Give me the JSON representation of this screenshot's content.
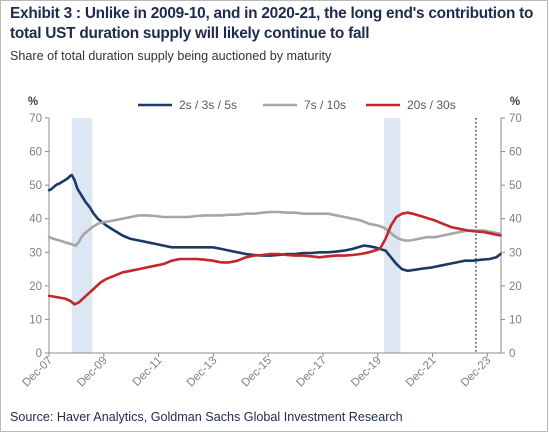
{
  "exhibit_title": "Exhibit 3 : Unlike in 2009-10, and in 2020-21, the long end's contribution to total UST duration supply will likely continue to fall",
  "subtitle": "Share of total duration supply being auctioned by maturity",
  "source": "Source: Haver Analytics, Goldman Sachs Global Investment Research",
  "chart_data": {
    "type": "line",
    "title": "",
    "xlabel": "",
    "ylabel_left": "%",
    "ylabel_right": "%",
    "ylim": [
      0,
      70
    ],
    "xlim": [
      2007.917,
      2024.417
    ],
    "y_ticks": [
      0,
      10,
      20,
      30,
      40,
      50,
      60,
      70
    ],
    "y_tick_labels": [
      "0",
      "10",
      "20",
      "30",
      "40",
      "50",
      "60",
      "70"
    ],
    "x_ticks": [
      2007.917,
      2009.917,
      2011.917,
      2013.917,
      2015.917,
      2017.917,
      2019.917,
      2021.917,
      2023.917
    ],
    "x_tick_labels": [
      "Dec-07",
      "Dec-09",
      "Dec-11",
      "Dec-13",
      "Dec-15",
      "Dec-17",
      "Dec-19",
      "Dec-21",
      "Dec-23"
    ],
    "grid": false,
    "legend_position": "top",
    "shaded_periods": [
      [
        2008.75,
        2009.5
      ],
      [
        2020.15,
        2020.75
      ]
    ],
    "vertical_marker_x": 2023.5,
    "series": [
      {
        "name": "2s / 3s / 5s",
        "color": "#1b3a64",
        "x": [
          2007.92,
          2008.0,
          2008.1,
          2008.2,
          2008.3,
          2008.4,
          2008.5,
          2008.6,
          2008.7,
          2008.75,
          2008.85,
          2008.95,
          2009.1,
          2009.25,
          2009.4,
          2009.55,
          2009.7,
          2009.85,
          2010.0,
          2010.3,
          2010.6,
          2010.9,
          2011.2,
          2011.5,
          2011.8,
          2012.1,
          2012.4,
          2012.7,
          2013.0,
          2013.3,
          2013.6,
          2013.9,
          2014.2,
          2014.5,
          2014.8,
          2015.1,
          2015.4,
          2015.7,
          2016.0,
          2016.3,
          2016.6,
          2016.9,
          2017.2,
          2017.5,
          2017.8,
          2018.1,
          2018.4,
          2018.7,
          2019.0,
          2019.2,
          2019.4,
          2019.6,
          2019.8,
          2020.0,
          2020.2,
          2020.4,
          2020.6,
          2020.8,
          2021.0,
          2021.3,
          2021.6,
          2021.9,
          2022.2,
          2022.5,
          2022.8,
          2023.1,
          2023.4,
          2023.7,
          2024.0,
          2024.25,
          2024.4
        ],
        "y": [
          48.5,
          48.8,
          49.5,
          50.2,
          50.5,
          51.0,
          51.5,
          52.0,
          52.8,
          53.0,
          51.5,
          49.0,
          47.0,
          45.0,
          43.5,
          41.5,
          40.0,
          39.0,
          38.0,
          36.5,
          35.0,
          34.0,
          33.5,
          33.0,
          32.5,
          32.0,
          31.5,
          31.5,
          31.5,
          31.5,
          31.5,
          31.5,
          31.0,
          30.5,
          30.0,
          29.5,
          29.2,
          29.0,
          29.0,
          29.2,
          29.5,
          29.5,
          29.8,
          29.8,
          30.0,
          30.0,
          30.2,
          30.5,
          31.0,
          31.5,
          32.0,
          31.8,
          31.5,
          31.0,
          30.5,
          28.5,
          26.5,
          25.0,
          24.5,
          24.8,
          25.2,
          25.5,
          26.0,
          26.5,
          27.0,
          27.5,
          27.5,
          27.8,
          28.0,
          28.5,
          29.5
        ]
      },
      {
        "name": "7s / 10s",
        "color": "#a6a6a6",
        "x": [
          2007.92,
          2008.1,
          2008.3,
          2008.5,
          2008.7,
          2008.9,
          2009.0,
          2009.1,
          2009.2,
          2009.35,
          2009.5,
          2009.7,
          2009.9,
          2010.1,
          2010.3,
          2010.6,
          2010.9,
          2011.2,
          2011.5,
          2011.8,
          2012.1,
          2012.4,
          2012.7,
          2013.0,
          2013.3,
          2013.6,
          2013.9,
          2014.2,
          2014.5,
          2014.8,
          2015.1,
          2015.4,
          2015.7,
          2016.0,
          2016.3,
          2016.6,
          2016.9,
          2017.2,
          2017.5,
          2017.8,
          2018.1,
          2018.4,
          2018.7,
          2019.0,
          2019.3,
          2019.6,
          2019.9,
          2020.1,
          2020.3,
          2020.5,
          2020.7,
          2020.9,
          2021.1,
          2021.4,
          2021.7,
          2022.0,
          2022.3,
          2022.6,
          2022.9,
          2023.2,
          2023.5,
          2023.8,
          2024.1,
          2024.4
        ],
        "y": [
          34.5,
          34.0,
          33.5,
          33.0,
          32.5,
          32.0,
          33.0,
          34.5,
          35.5,
          36.5,
          37.5,
          38.5,
          39.0,
          39.2,
          39.5,
          40.0,
          40.5,
          41.0,
          41.0,
          40.8,
          40.5,
          40.5,
          40.5,
          40.5,
          40.8,
          41.0,
          41.0,
          41.0,
          41.2,
          41.2,
          41.5,
          41.5,
          41.8,
          42.0,
          42.0,
          41.8,
          41.8,
          41.5,
          41.5,
          41.5,
          41.5,
          41.0,
          40.5,
          40.0,
          39.5,
          38.5,
          38.0,
          37.5,
          36.5,
          35.0,
          34.0,
          33.5,
          33.5,
          34.0,
          34.5,
          34.5,
          35.0,
          35.5,
          36.0,
          36.5,
          36.5,
          36.5,
          36.0,
          35.5
        ]
      },
      {
        "name": "20s / 30s",
        "color": "#c0282d",
        "x": [
          2007.92,
          2008.1,
          2008.3,
          2008.5,
          2008.7,
          2008.85,
          2009.0,
          2009.2,
          2009.4,
          2009.6,
          2009.8,
          2010.0,
          2010.3,
          2010.6,
          2010.9,
          2011.2,
          2011.5,
          2011.8,
          2012.1,
          2012.4,
          2012.7,
          2013.0,
          2013.3,
          2013.6,
          2013.9,
          2014.2,
          2014.5,
          2014.8,
          2015.1,
          2015.4,
          2015.7,
          2016.0,
          2016.3,
          2016.6,
          2016.9,
          2017.2,
          2017.5,
          2017.8,
          2018.1,
          2018.4,
          2018.7,
          2019.0,
          2019.3,
          2019.6,
          2019.8,
          2020.0,
          2020.2,
          2020.4,
          2020.6,
          2020.8,
          2021.0,
          2021.2,
          2021.4,
          2021.6,
          2021.8,
          2022.0,
          2022.3,
          2022.6,
          2022.9,
          2023.2,
          2023.5,
          2023.8,
          2024.1,
          2024.4
        ],
        "y": [
          17.0,
          16.8,
          16.5,
          16.2,
          15.5,
          14.5,
          15.0,
          16.5,
          18.0,
          19.5,
          21.0,
          22.0,
          23.0,
          24.0,
          24.5,
          25.0,
          25.5,
          26.0,
          26.5,
          27.5,
          28.0,
          28.0,
          28.0,
          27.8,
          27.5,
          27.0,
          27.0,
          27.5,
          28.5,
          29.0,
          29.2,
          29.5,
          29.5,
          29.2,
          29.0,
          29.0,
          28.8,
          28.5,
          28.8,
          29.0,
          29.0,
          29.2,
          29.5,
          30.0,
          30.5,
          31.0,
          34.0,
          38.0,
          40.5,
          41.5,
          41.8,
          41.5,
          41.0,
          40.5,
          40.0,
          39.5,
          38.5,
          37.5,
          37.0,
          36.5,
          36.2,
          36.0,
          35.5,
          35.0
        ]
      }
    ]
  }
}
